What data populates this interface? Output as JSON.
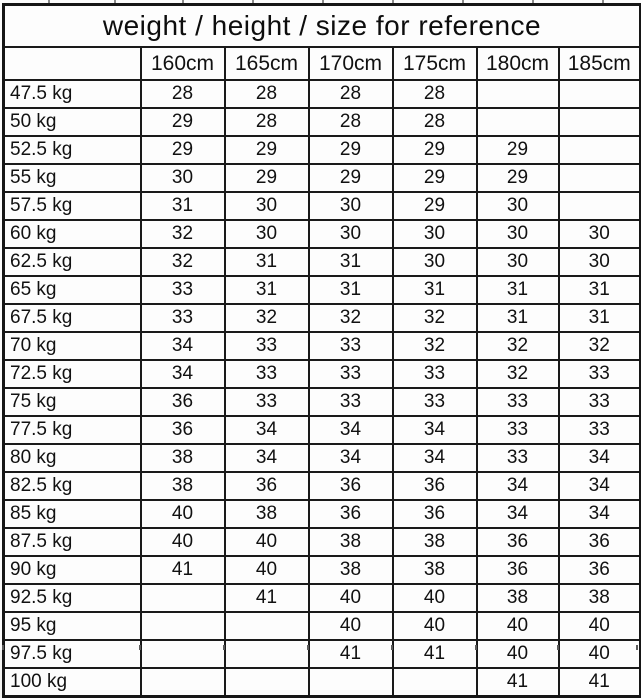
{
  "colors": {
    "border": "#1a1a1a",
    "background": "#fcfcfc",
    "text": "#111111"
  },
  "chart_data": {
    "type": "table",
    "title": "weight / height / size for reference",
    "corner_label": "",
    "columns": [
      "160cm",
      "165cm",
      "170cm",
      "175cm",
      "180cm",
      "185cm"
    ],
    "rows": [
      {
        "label": "47.5 kg",
        "values": [
          "28",
          "28",
          "28",
          "28",
          "",
          ""
        ]
      },
      {
        "label": "50 kg",
        "values": [
          "29",
          "28",
          "28",
          "28",
          "",
          ""
        ]
      },
      {
        "label": "52.5 kg",
        "values": [
          "29",
          "29",
          "29",
          "29",
          "29",
          ""
        ]
      },
      {
        "label": "55 kg",
        "values": [
          "30",
          "29",
          "29",
          "29",
          "29",
          ""
        ]
      },
      {
        "label": "57.5 kg",
        "values": [
          "31",
          "30",
          "30",
          "29",
          "30",
          ""
        ]
      },
      {
        "label": "60 kg",
        "values": [
          "32",
          "30",
          "30",
          "30",
          "30",
          "30"
        ]
      },
      {
        "label": "62.5 kg",
        "values": [
          "32",
          "31",
          "31",
          "30",
          "30",
          "30"
        ]
      },
      {
        "label": "65 kg",
        "values": [
          "33",
          "31",
          "31",
          "31",
          "31",
          "31"
        ]
      },
      {
        "label": "67.5 kg",
        "values": [
          "33",
          "32",
          "32",
          "32",
          "31",
          "31"
        ]
      },
      {
        "label": "70 kg",
        "values": [
          "34",
          "33",
          "33",
          "32",
          "32",
          "32"
        ]
      },
      {
        "label": "72.5 kg",
        "values": [
          "34",
          "33",
          "33",
          "33",
          "32",
          "33"
        ]
      },
      {
        "label": "75 kg",
        "values": [
          "36",
          "33",
          "33",
          "33",
          "33",
          "33"
        ]
      },
      {
        "label": "77.5 kg",
        "values": [
          "36",
          "34",
          "34",
          "34",
          "33",
          "33"
        ]
      },
      {
        "label": "80 kg",
        "values": [
          "38",
          "34",
          "34",
          "34",
          "33",
          "34"
        ]
      },
      {
        "label": "82.5 kg",
        "values": [
          "38",
          "36",
          "36",
          "36",
          "34",
          "34"
        ]
      },
      {
        "label": "85 kg",
        "values": [
          "40",
          "38",
          "36",
          "36",
          "34",
          "34"
        ]
      },
      {
        "label": "87.5 kg",
        "values": [
          "40",
          "40",
          "38",
          "38",
          "36",
          "36"
        ]
      },
      {
        "label": "90 kg",
        "values": [
          "41",
          "40",
          "38",
          "38",
          "36",
          "36"
        ]
      },
      {
        "label": "92.5 kg",
        "values": [
          "",
          "41",
          "40",
          "40",
          "38",
          "38"
        ]
      },
      {
        "label": "95 kg",
        "values": [
          "",
          "",
          "40",
          "40",
          "40",
          "40"
        ]
      },
      {
        "label": "97.5 kg",
        "values": [
          "",
          "",
          "41",
          "41",
          "40",
          "40"
        ]
      },
      {
        "label": "100 kg",
        "values": [
          "",
          "",
          "",
          "",
          "41",
          "41"
        ]
      }
    ]
  }
}
